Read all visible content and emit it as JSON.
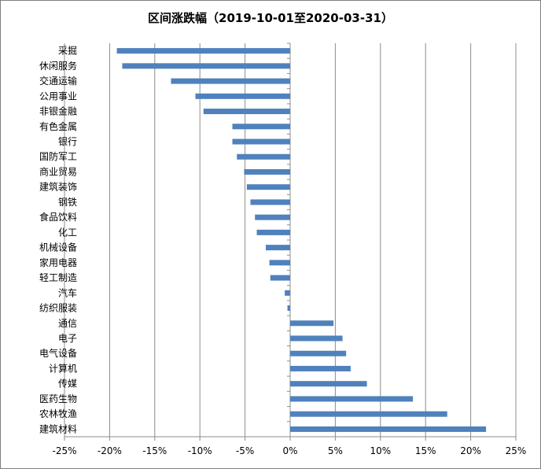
{
  "chart_data": {
    "type": "bar",
    "orientation": "horizontal",
    "title": "区间涨跌幅（2019-10-01至2020-03-31）",
    "xlabel": "",
    "ylabel": "",
    "xlim": [
      -25,
      25
    ],
    "x_ticks": [
      "-25%",
      "-20%",
      "-15%",
      "-10%",
      "-5%",
      "0%",
      "5%",
      "10%",
      "15%",
      "20%",
      "25%"
    ],
    "grid": "vertical",
    "legend": "none",
    "bar_color": "#4f81bd",
    "categories": [
      "采掘",
      "休闲服务",
      "交通运输",
      "公用事业",
      "非银金融",
      "有色金属",
      "银行",
      "国防军工",
      "商业贸易",
      "建筑装饰",
      "钢铁",
      "食品饮料",
      "化工",
      "机械设备",
      "家用电器",
      "轻工制造",
      "汽车",
      "纺织服装",
      "通信",
      "电子",
      "电气设备",
      "计算机",
      "传媒",
      "医药生物",
      "农林牧渔",
      "建筑材料"
    ],
    "values": [
      -19.2,
      -18.6,
      -13.2,
      -10.5,
      -9.6,
      -6.4,
      -6.4,
      -5.9,
      -5.1,
      -4.8,
      -4.4,
      -3.9,
      -3.7,
      -2.7,
      -2.3,
      -2.2,
      -0.6,
      -0.3,
      4.8,
      5.8,
      6.2,
      6.7,
      8.5,
      13.6,
      17.4,
      21.7
    ]
  }
}
